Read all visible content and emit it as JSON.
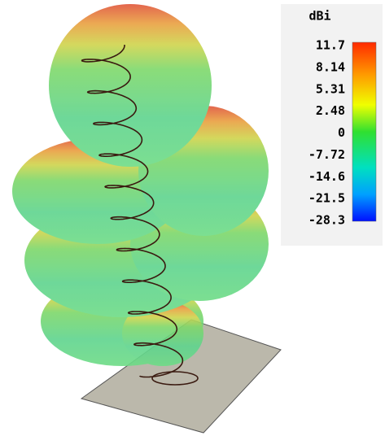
{
  "colorbar": {
    "title": "dBi",
    "labels": [
      "11.7",
      "8.14",
      "5.31",
      "2.48",
      "0",
      "-7.72",
      "-14.6",
      "-21.5",
      "-28.3"
    ]
  }
}
